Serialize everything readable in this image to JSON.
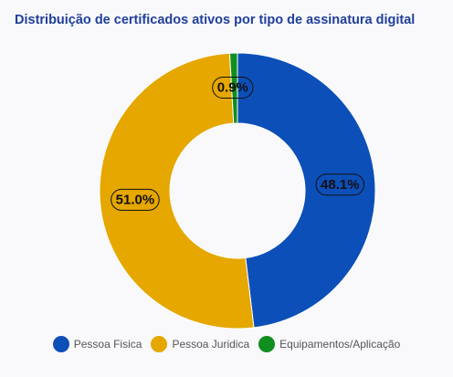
{
  "chart_data": {
    "type": "pie",
    "variant": "donut",
    "title": "Distribuição de certificados ativos por tipo de assinatura digital",
    "slices": [
      {
        "name": "Pessoa Fisica",
        "value": 48.1,
        "label": "48.1%",
        "color": "#0d4fb8"
      },
      {
        "name": "Pessoa Juridica",
        "value": 51.0,
        "label": "51.0%",
        "color": "#e5a700"
      },
      {
        "name": "Equipamentos/Aplicação",
        "value": 0.9,
        "label": "0.9%",
        "color": "#0f8f1e"
      }
    ],
    "legend_position": "bottom"
  }
}
